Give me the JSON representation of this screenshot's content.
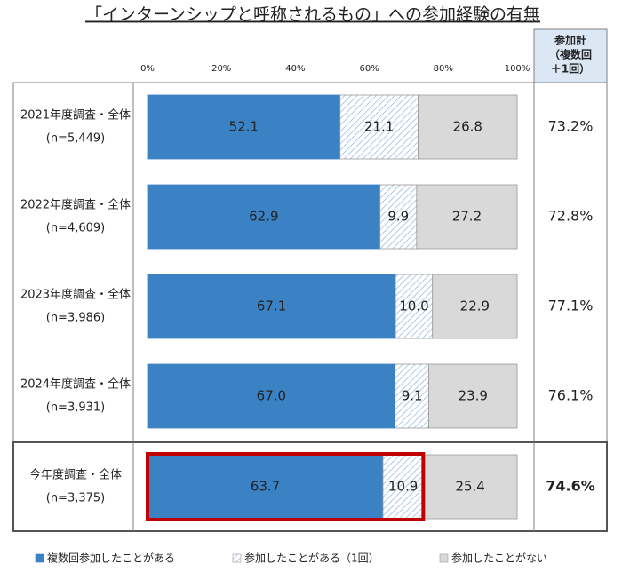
{
  "chart_data": {
    "type": "stacked-bar",
    "title": "「インターンシップと呼称されるもの」への参加経験の有無",
    "categories": [
      "2021年度調査・全体",
      "2022年度調査・全体",
      "2023年度調査・全体",
      "2024年度調査・全体",
      "今年度調査・全体"
    ],
    "n_labels": [
      "(n=5,449)",
      "(n=4,609)",
      "(n=3,986)",
      "(n=3,931)",
      "(n=3,375)"
    ],
    "series": [
      {
        "name": "複数回参加したことがある",
        "color": "#3b82c4",
        "values": [
          52.1,
          62.9,
          67.1,
          67.0,
          63.7
        ],
        "value_labels": [
          "52.1",
          "62.9",
          "67.1",
          "67.0",
          "63.7"
        ]
      },
      {
        "name": "参加したことがある（1回）",
        "color": "#8fb3da",
        "values": [
          21.1,
          9.9,
          10.0,
          9.1,
          10.9
        ],
        "value_labels": [
          "21.1",
          "9.9",
          "10.0",
          "9.1",
          "10.9"
        ]
      },
      {
        "name": "参加したことがない",
        "color": "#d9d9d9",
        "values": [
          26.8,
          27.2,
          22.9,
          23.9,
          25.4
        ],
        "value_labels": [
          "26.8",
          "27.2",
          "22.9",
          "23.9",
          "25.4"
        ]
      }
    ],
    "xlim": [
      0,
      100
    ],
    "xticks": [
      {
        "value": 0,
        "label": "0%"
      },
      {
        "value": 20,
        "label": "20%"
      },
      {
        "value": 40,
        "label": "40%"
      },
      {
        "value": 60,
        "label": "60%"
      },
      {
        "value": 80,
        "label": "80%"
      },
      {
        "value": 100,
        "label": "100%"
      }
    ],
    "total_header": [
      "参加計",
      "（複数回",
      "＋1回）"
    ],
    "totals": {
      "values": [
        73.2,
        72.8,
        77.1,
        76.1,
        74.6
      ],
      "value_labels": [
        "73.2%",
        "72.8%",
        "77.1%",
        "76.1%",
        "74.6%"
      ]
    },
    "highlight_color": "#c00000"
  }
}
